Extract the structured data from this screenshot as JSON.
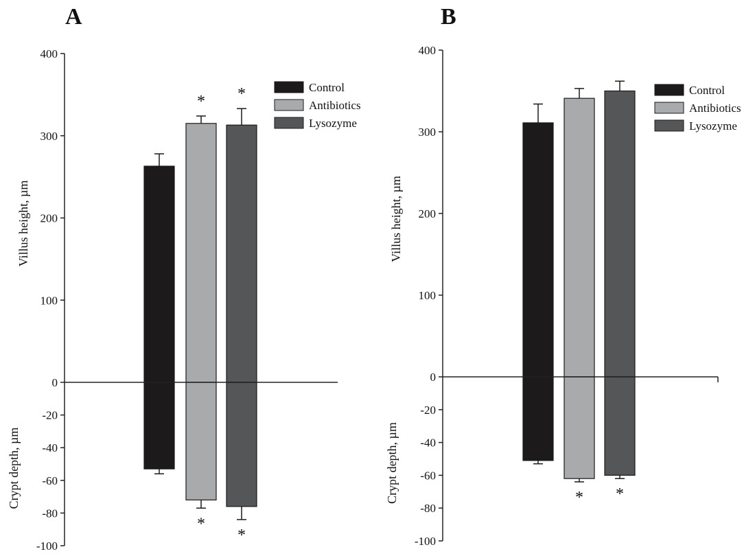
{
  "chart_data": [
    {
      "type": "bar",
      "panel_label": "A",
      "categories": [
        "Control",
        "Antibiotics",
        "Lysozyme"
      ],
      "y_upper_label": "Villus height, µm",
      "y_lower_label": "Crypt depth, µm",
      "upper_ticks": [
        "0",
        "100",
        "200",
        "300",
        "400"
      ],
      "lower_ticks": [
        "-20",
        "-40",
        "-60",
        "-80",
        "-100"
      ],
      "ylim_upper": [
        0,
        400
      ],
      "ylim_lower": [
        -100,
        0
      ],
      "series": [
        {
          "name": "Villus height",
          "values": [
            263,
            315,
            313
          ],
          "error": [
            15,
            9,
            20
          ],
          "significance": [
            "",
            "*",
            "*"
          ]
        },
        {
          "name": "Crypt depth",
          "values": [
            -53,
            -72,
            -76
          ],
          "error": [
            3,
            5,
            8
          ],
          "significance": [
            "",
            "*",
            "*"
          ]
        }
      ],
      "legend": {
        "placement": "top-right",
        "entries": [
          "Control",
          "Antibiotics",
          "Lysozyme"
        ]
      },
      "colors": [
        "#1c1a1b",
        "#a8aaac",
        "#545658"
      ]
    },
    {
      "type": "bar",
      "panel_label": "B",
      "categories": [
        "Control",
        "Antibiotics",
        "Lysozyme"
      ],
      "y_upper_label": "Villus height, µm",
      "y_lower_label": "Crypt depth, µm",
      "upper_ticks": [
        "0",
        "100",
        "200",
        "300",
        "400"
      ],
      "lower_ticks": [
        "-20",
        "-40",
        "-60",
        "-80",
        "-100"
      ],
      "ylim_upper": [
        0,
        400
      ],
      "ylim_lower": [
        -100,
        0
      ],
      "series": [
        {
          "name": "Villus height",
          "values": [
            311,
            341,
            350
          ],
          "error": [
            23,
            12,
            12
          ],
          "significance": [
            "",
            "",
            ""
          ]
        },
        {
          "name": "Crypt depth",
          "values": [
            -51,
            -62,
            -60
          ],
          "error": [
            2,
            2,
            2
          ],
          "significance": [
            "",
            "*",
            "*"
          ]
        }
      ],
      "legend": {
        "placement": "top-right",
        "entries": [
          "Control",
          "Antibiotics",
          "Lysozyme"
        ]
      },
      "colors": [
        "#1c1a1b",
        "#a8aaac",
        "#545658"
      ]
    }
  ]
}
